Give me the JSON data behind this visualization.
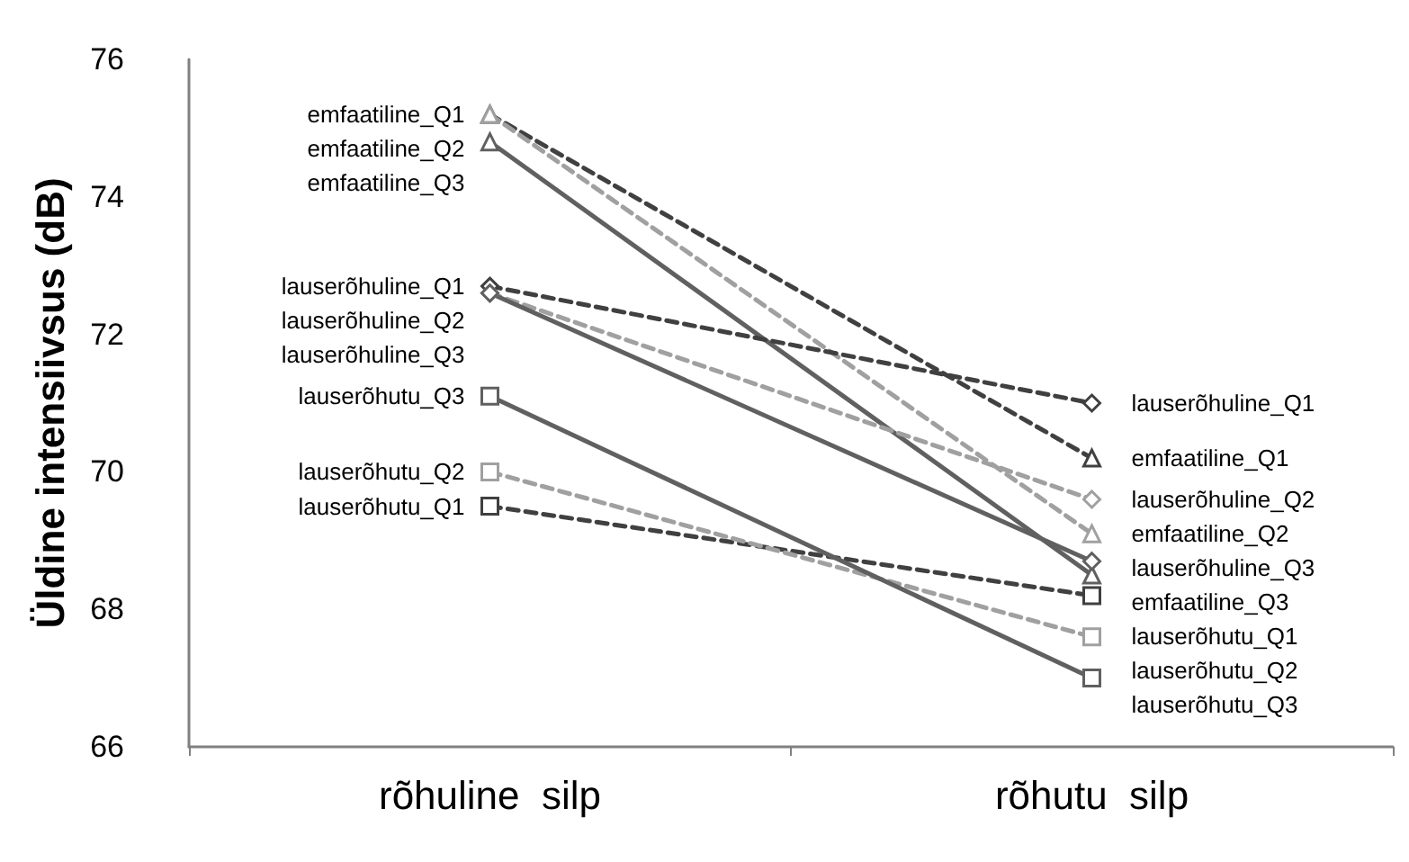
{
  "chart_data": {
    "type": "line",
    "ylabel": "Üldine intensiivsus (dB)",
    "categories": [
      "rõhuline  silp",
      "rõhutu  silp"
    ],
    "ylim": [
      66,
      76
    ],
    "yticks": [
      66,
      68,
      70,
      72,
      74,
      76
    ],
    "grid": false,
    "legend": false,
    "series": [
      {
        "name": "emfaatiline_Q1",
        "color": "#404040",
        "marker": "triangle",
        "line_style": "dashed",
        "values": [
          75.2,
          70.2
        ]
      },
      {
        "name": "emfaatiline_Q2",
        "color": "#a0a0a0",
        "marker": "triangle",
        "line_style": "dashed",
        "values": [
          75.2,
          69.1
        ]
      },
      {
        "name": "emfaatiline_Q3",
        "color": "#606060",
        "marker": "triangle",
        "line_style": "solid",
        "values": [
          74.8,
          68.5
        ]
      },
      {
        "name": "lauserõhuline_Q1",
        "color": "#404040",
        "marker": "diamond",
        "line_style": "dashed",
        "values": [
          72.7,
          71.0
        ]
      },
      {
        "name": "lauserõhuline_Q2",
        "color": "#a0a0a0",
        "marker": "diamond",
        "line_style": "dashed",
        "values": [
          72.6,
          69.6
        ]
      },
      {
        "name": "lauserõhuline_Q3",
        "color": "#606060",
        "marker": "diamond",
        "line_style": "solid",
        "values": [
          72.6,
          68.7
        ]
      },
      {
        "name": "lauserõhutu_Q1",
        "color": "#404040",
        "marker": "square",
        "line_style": "dashed",
        "values": [
          69.5,
          68.2
        ]
      },
      {
        "name": "lauserõhutu_Q2",
        "color": "#a0a0a0",
        "marker": "square",
        "line_style": "dashed",
        "values": [
          70.0,
          67.6
        ]
      },
      {
        "name": "lauserõhutu_Q3",
        "color": "#606060",
        "marker": "square",
        "line_style": "solid",
        "values": [
          71.1,
          67.0
        ]
      }
    ]
  }
}
